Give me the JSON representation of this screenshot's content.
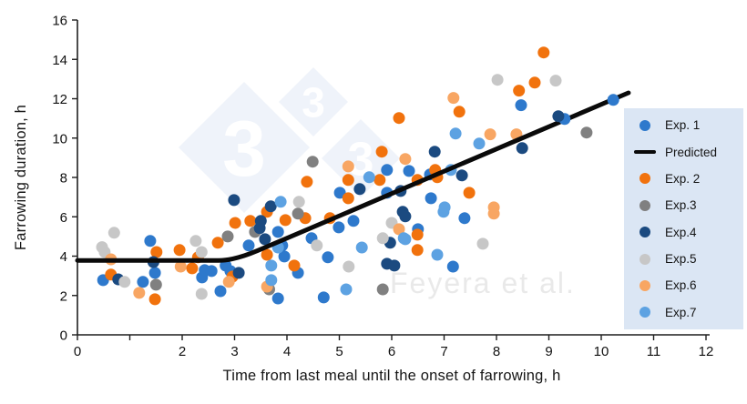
{
  "watermark": {
    "diamond_text": "3",
    "author": "Feyera et al.",
    "diamond_color": "#eff3fa",
    "diamond_text_color": "#ffffff",
    "author_color": "#e9e9e9"
  },
  "legend": {
    "bg": "#dbe6f4",
    "items": [
      {
        "label": "Exp. 1",
        "marker": "dot",
        "color": "#2e79cc"
      },
      {
        "label": "Predicted",
        "marker": "line",
        "color": "#0a0a0a"
      },
      {
        "label": "Exp. 2",
        "marker": "dot",
        "color": "#f1720d"
      },
      {
        "label": "Exp.3",
        "marker": "dot",
        "color": "#808080"
      },
      {
        "label": "Exp.4",
        "marker": "dot",
        "color": "#1b4a80"
      },
      {
        "label": "Exp.5",
        "marker": "dot",
        "color": "#c7c7c7"
      },
      {
        "label": "Exp.6",
        "marker": "dot",
        "color": "#f8a663"
      },
      {
        "label": "Exp.7",
        "marker": "dot",
        "color": "#5da2e2"
      }
    ]
  },
  "chart_data": {
    "type": "scatter",
    "title": "",
    "xlabel": "Time from last meal until the onset of farrowing, h",
    "ylabel": "Farrowing duration, h",
    "xlim": [
      0,
      12
    ],
    "ylim": [
      0,
      16
    ],
    "x_ticks": [
      0,
      1,
      2,
      3,
      4,
      5,
      6,
      7,
      8,
      9,
      10,
      11,
      12
    ],
    "x_tick_labels": [
      "0",
      "",
      "2",
      "3",
      "4",
      "5",
      "6",
      "7",
      "8",
      "9",
      "10",
      "11",
      "12"
    ],
    "y_ticks": [
      0,
      2,
      4,
      6,
      8,
      10,
      12,
      14,
      16
    ],
    "y_tick_labels": [
      "0",
      "2",
      "4",
      "6",
      "8",
      "10",
      "12",
      "14",
      "16"
    ],
    "grid": false,
    "legend_position": "right",
    "marker_radius": 6.5,
    "series": [
      {
        "name": "Exp. 1",
        "color": "#2e79cc",
        "points": [
          [
            0.49,
            2.78
          ],
          [
            1.39,
            4.77
          ],
          [
            1.25,
            2.69
          ],
          [
            1.48,
            3.15
          ],
          [
            2.38,
            2.92
          ],
          [
            2.43,
            3.29
          ],
          [
            2.56,
            3.24
          ],
          [
            2.73,
            2.22
          ],
          [
            2.83,
            3.52
          ],
          [
            2.92,
            3.24
          ],
          [
            3.27,
            4.54
          ],
          [
            3.83,
            5.23
          ],
          [
            3.91,
            4.54
          ],
          [
            3.95,
            3.98
          ],
          [
            4.21,
            3.15
          ],
          [
            3.83,
            1.85
          ],
          [
            4.47,
            4.91
          ],
          [
            4.7,
            1.9
          ],
          [
            4.78,
            3.94
          ],
          [
            4.99,
            5.46
          ],
          [
            5.01,
            7.22
          ],
          [
            5.27,
            5.79
          ],
          [
            5.91,
            8.38
          ],
          [
            5.91,
            7.22
          ],
          [
            6.33,
            8.33
          ],
          [
            6.5,
            5.37
          ],
          [
            6.73,
            8.15
          ],
          [
            6.75,
            6.94
          ],
          [
            7.17,
            3.47
          ],
          [
            7.39,
            5.93
          ],
          [
            8.47,
            11.67
          ],
          [
            9.3,
            10.97,
            1
          ],
          [
            10.23,
            11.94,
            1
          ]
        ]
      },
      {
        "name": "Exp. 2",
        "color": "#f1720d",
        "points": [
          [
            0.64,
            3.06
          ],
          [
            1.48,
            1.81
          ],
          [
            1.51,
            4.21
          ],
          [
            1.95,
            4.31
          ],
          [
            2.19,
            3.38
          ],
          [
            2.3,
            3.94
          ],
          [
            2.68,
            4.68
          ],
          [
            2.96,
            2.96
          ],
          [
            3.01,
            5.69
          ],
          [
            3.3,
            5.79
          ],
          [
            3.62,
            6.25
          ],
          [
            3.62,
            4.07
          ],
          [
            3.97,
            5.83
          ],
          [
            4.14,
            3.52
          ],
          [
            4.35,
            5.93
          ],
          [
            4.38,
            7.78
          ],
          [
            4.82,
            5.93
          ],
          [
            5.17,
            7.87
          ],
          [
            5.17,
            6.94
          ],
          [
            5.77,
            7.87
          ],
          [
            5.81,
            9.31
          ],
          [
            6.14,
            11.02
          ],
          [
            6.49,
            7.87
          ],
          [
            6.49,
            5.09
          ],
          [
            6.49,
            4.31
          ],
          [
            6.83,
            8.38
          ],
          [
            6.87,
            8.01
          ],
          [
            7.29,
            11.34
          ],
          [
            7.48,
            7.22
          ],
          [
            8.43,
            12.41
          ],
          [
            8.73,
            12.82
          ],
          [
            8.9,
            14.35
          ]
        ]
      },
      {
        "name": "Exp.3",
        "color": "#808080",
        "points": [
          [
            1.5,
            2.55
          ],
          [
            2.87,
            5.0
          ],
          [
            3.39,
            5.23
          ],
          [
            3.66,
            2.31
          ],
          [
            4.21,
            6.16
          ],
          [
            4.49,
            8.8
          ],
          [
            5.83,
            2.31
          ],
          [
            9.72,
            10.28
          ]
        ]
      },
      {
        "name": "Exp.4",
        "color": "#1b4a80",
        "points": [
          [
            0.78,
            2.82
          ],
          [
            1.45,
            3.7
          ],
          [
            2.99,
            6.85
          ],
          [
            3.08,
            3.15
          ],
          [
            3.48,
            5.42
          ],
          [
            3.5,
            5.79
          ],
          [
            3.58,
            4.86
          ],
          [
            3.69,
            6.53
          ],
          [
            5.39,
            7.41
          ],
          [
            5.91,
            3.61
          ],
          [
            5.97,
            4.68
          ],
          [
            6.05,
            3.52
          ],
          [
            6.17,
            7.31
          ],
          [
            6.21,
            6.25
          ],
          [
            6.26,
            6.02
          ],
          [
            6.82,
            9.31
          ],
          [
            7.34,
            8.1
          ],
          [
            8.49,
            9.49
          ],
          [
            9.18,
            11.11,
            1
          ]
        ]
      },
      {
        "name": "Exp.5",
        "color": "#c7c7c7",
        "points": [
          [
            0.47,
            4.46
          ],
          [
            0.52,
            4.21
          ],
          [
            0.7,
            5.19
          ],
          [
            0.9,
            2.69
          ],
          [
            2.26,
            4.77
          ],
          [
            2.37,
            4.21
          ],
          [
            2.37,
            2.08
          ],
          [
            4.23,
            6.76
          ],
          [
            4.57,
            4.54
          ],
          [
            5.18,
            3.47
          ],
          [
            5.83,
            4.91
          ],
          [
            6.0,
            5.69
          ],
          [
            7.74,
            4.63
          ],
          [
            8.02,
            12.96
          ],
          [
            9.13,
            12.92
          ]
        ]
      },
      {
        "name": "Exp.6",
        "color": "#f8a663",
        "points": [
          [
            0.64,
            3.84
          ],
          [
            1.18,
            2.13
          ],
          [
            1.97,
            3.47
          ],
          [
            2.89,
            2.69
          ],
          [
            3.62,
            2.45
          ],
          [
            5.17,
            8.56
          ],
          [
            6.14,
            5.37
          ],
          [
            6.26,
            8.94
          ],
          [
            7.18,
            12.04
          ],
          [
            7.88,
            10.19
          ],
          [
            7.95,
            6.48
          ],
          [
            7.95,
            6.16
          ],
          [
            8.38,
            10.19
          ]
        ]
      },
      {
        "name": "Exp.7",
        "color": "#5da2e2",
        "points": [
          [
            3.7,
            3.52
          ],
          [
            3.7,
            2.78
          ],
          [
            3.83,
            4.44
          ],
          [
            3.88,
            6.76
          ],
          [
            5.13,
            2.31
          ],
          [
            5.43,
            4.44
          ],
          [
            5.57,
            8.01
          ],
          [
            6.23,
            4.91
          ],
          [
            6.26,
            4.86
          ],
          [
            6.87,
            4.07
          ],
          [
            6.99,
            6.25
          ],
          [
            7.01,
            6.48
          ],
          [
            7.13,
            8.38
          ],
          [
            7.22,
            10.23
          ],
          [
            7.67,
            9.72
          ]
        ]
      }
    ],
    "predicted_line": {
      "name": "Predicted",
      "color": "#0a0a0a",
      "breakpoint_x": 3.0,
      "flat_y": 3.78,
      "points": [
        [
          0,
          3.78
        ],
        [
          3.0,
          3.78
        ],
        [
          10.52,
          12.3
        ]
      ]
    }
  }
}
